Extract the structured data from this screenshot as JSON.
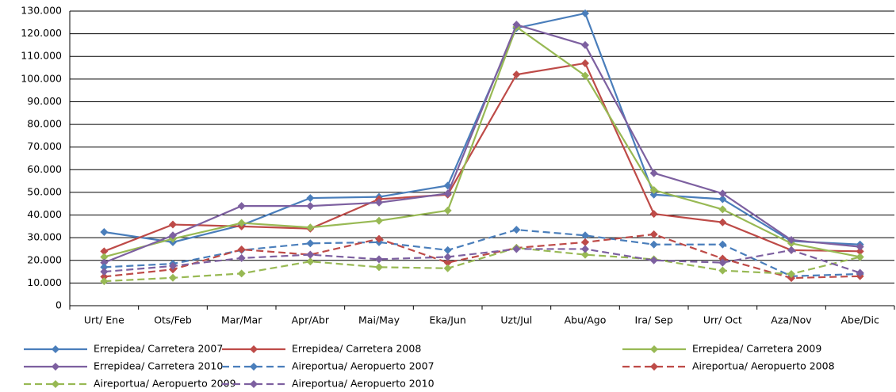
{
  "chart_data": {
    "type": "line",
    "categories": [
      "Urt/ Ene",
      "Ots/Feb",
      "Mar/Mar",
      "Apr/Abr",
      "Mai/May",
      "Eka/Jun",
      "Uzt/Jul",
      "Abu/Ago",
      "Ira/ Sep",
      "Urr/ Oct",
      "Aza/Nov",
      "Abe/Dic"
    ],
    "ylim": [
      0,
      130000
    ],
    "yticks": [
      0,
      {
        "value": 10000,
        "label": "10.000"
      },
      {
        "value": 20000,
        "label": "20.000"
      },
      {
        "value": 30000,
        "label": "30.000"
      },
      {
        "value": 40000,
        "label": "40.000"
      },
      {
        "value": 50000,
        "label": "50.000"
      },
      {
        "value": 60000,
        "label": "60.000"
      },
      {
        "value": 70000,
        "label": "70.000"
      },
      {
        "value": 80000,
        "label": "80.000"
      },
      {
        "value": 90000,
        "label": "90.000"
      },
      {
        "value": 100000,
        "label": "100.000"
      },
      {
        "value": 110000,
        "label": "110.000"
      },
      {
        "value": 120000,
        "label": "120.000"
      },
      {
        "value": 130000,
        "label": "130.000"
      }
    ],
    "grid": true,
    "legend": "bottom",
    "series": [
      {
        "name": "Errepidea/ Carretera 2007",
        "color": "#4a7ebb",
        "style": "solid",
        "values": [
          32500,
          28000,
          35500,
          47500,
          48000,
          53000,
          122500,
          129000,
          49000,
          47000,
          28500,
          27000
        ]
      },
      {
        "name": "Errepidea/ Carretera 2008",
        "color": "#be4b48",
        "style": "solid",
        "values": [
          24000,
          35800,
          35000,
          34000,
          47000,
          49000,
          102000,
          107000,
          40500,
          36800,
          24500,
          24000
        ]
      },
      {
        "name": "Errepidea/ Carretera 2009",
        "color": "#98b954",
        "style": "solid",
        "values": [
          21500,
          29500,
          36500,
          34500,
          37500,
          42000,
          123000,
          101500,
          51000,
          42500,
          27500,
          21500
        ]
      },
      {
        "name": "Errepidea/ Carretera 2010",
        "color": "#7d60a0",
        "style": "solid",
        "values": [
          19000,
          31000,
          44000,
          44000,
          45500,
          49500,
          124000,
          115000,
          58500,
          49500,
          29000,
          26000
        ]
      },
      {
        "name": "Aireportua/ Aeropuerto 2007",
        "color": "#4a7ebb",
        "style": "dashed",
        "values": [
          17000,
          18500,
          24500,
          27500,
          28000,
          24500,
          33500,
          31000,
          27000,
          27000,
          13000,
          14000
        ]
      },
      {
        "name": "Aireportua/ Aeropuerto 2008",
        "color": "#be4b48",
        "style": "dashed",
        "values": [
          12800,
          16000,
          24800,
          22500,
          29500,
          19000,
          25500,
          28000,
          31500,
          20800,
          12200,
          13000
        ]
      },
      {
        "name": "Aireportua/ Aeropuerto 2009",
        "color": "#98b954",
        "style": "dashed",
        "values": [
          10800,
          12300,
          14200,
          19500,
          17000,
          16500,
          25500,
          22500,
          20500,
          15500,
          14000,
          21500
        ]
      },
      {
        "name": "Aireportua/ Aeropuerto 2010",
        "color": "#7d60a0",
        "style": "dashed",
        "values": [
          15000,
          17500,
          21000,
          22500,
          20500,
          21500,
          25000,
          25000,
          20000,
          19000,
          24500,
          14500
        ]
      }
    ]
  }
}
